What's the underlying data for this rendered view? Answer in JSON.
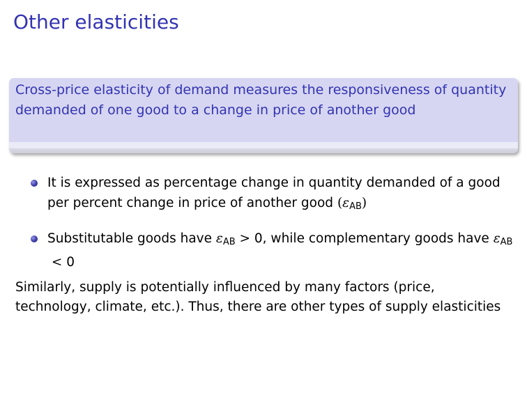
{
  "slide": {
    "title": "Other elasticities",
    "definition_text": "Cross-price elasticity of demand measures the responsiveness of quantity demanded of one good to a change in price of another good"
  },
  "bullets": [
    {
      "text_before": "It is expressed as percentage change in quantity demanded of a good per percent change in price of another good ",
      "paren_open": "(",
      "symbol": "ε",
      "subscript": "AB",
      "paren_close": ")"
    },
    {
      "text_before": "Substitutable goods have ",
      "symbol1": "ε",
      "subscript1": "AB",
      "relation1": " > ",
      "value1": "0",
      "text_middle": ", while complementary goods have ",
      "symbol2": "ε",
      "subscript2": "AB",
      "relation2": " < ",
      "value2": "0"
    }
  ],
  "closing_paragraph": "Similarly, supply is potentially influenced by many factors (price, technology, climate, etc.).  Thus, there are other types of supply elasticities",
  "colors": {
    "title": "#3333b3",
    "block_body": "#d6d6f2",
    "bullet": "#4848b3"
  }
}
